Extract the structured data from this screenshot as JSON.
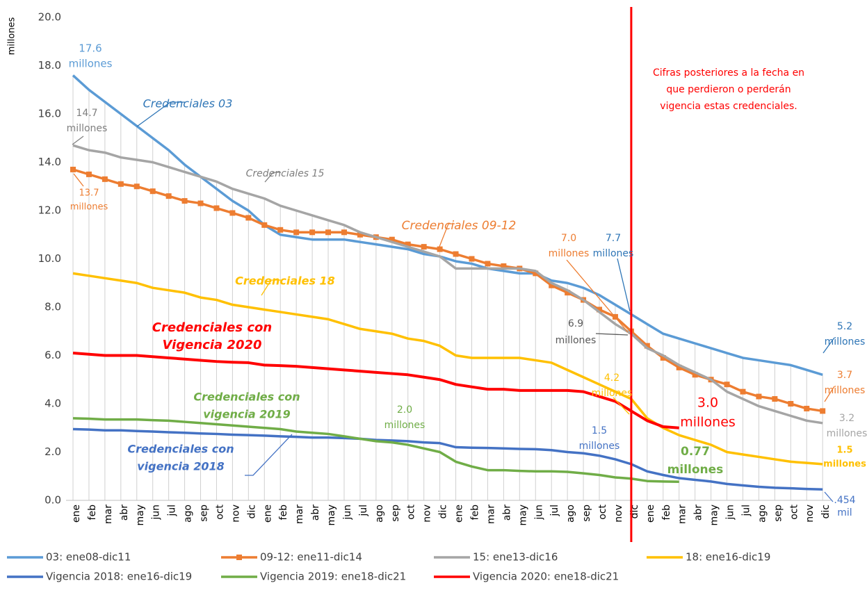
{
  "chart_data": {
    "type": "line",
    "y_label": "millones",
    "categories": [
      "ene",
      "feb",
      "mar",
      "abr",
      "may",
      "jun",
      "jul",
      "ago",
      "sep",
      "oct",
      "nov",
      "dic",
      "ene",
      "feb",
      "mar",
      "abr",
      "may",
      "jun",
      "jul",
      "ago",
      "sep",
      "oct",
      "nov",
      "dic",
      "ene",
      "feb",
      "mar",
      "abr",
      "may",
      "jun",
      "jul",
      "ago",
      "sep",
      "oct",
      "nov",
      "dic",
      "ene",
      "feb",
      "mar",
      "abr",
      "may",
      "jun",
      "jul",
      "ago",
      "sep",
      "oct",
      "nov",
      "dic"
    ],
    "ylim": [
      0,
      20
    ],
    "yticks": [
      {
        "value": 0,
        "label": "0.0"
      },
      {
        "value": 2,
        "label": "2.0"
      },
      {
        "value": 4,
        "label": "4.0"
      },
      {
        "value": 6,
        "label": "6.0"
      },
      {
        "value": 8,
        "label": "8.0"
      },
      {
        "value": 10,
        "label": "10.0"
      },
      {
        "value": 12,
        "label": "12.0"
      },
      {
        "value": 14,
        "label": "14.0"
      },
      {
        "value": 16,
        "label": "16.0"
      },
      {
        "value": 18,
        "label": "18.0"
      },
      {
        "value": 20,
        "label": "20.0"
      }
    ],
    "series": [
      {
        "name": "03: ene08-dic11",
        "color": "#5B9BD5",
        "values": [
          17.6,
          17.0,
          16.5,
          16.0,
          15.5,
          15.0,
          14.5,
          13.9,
          13.4,
          12.9,
          12.4,
          12.0,
          11.4,
          11.0,
          10.9,
          10.8,
          10.8,
          10.8,
          10.7,
          10.6,
          10.5,
          10.4,
          10.2,
          10.1,
          9.9,
          9.8,
          9.6,
          9.5,
          9.4,
          9.4,
          9.1,
          9.0,
          8.8,
          8.5,
          8.1,
          7.7,
          7.3,
          6.9,
          6.7,
          6.5,
          6.3,
          6.1,
          5.9,
          5.8,
          5.7,
          5.6,
          5.4,
          5.2
        ]
      },
      {
        "name": "09-12: ene11-dic14",
        "color": "#ED7D31",
        "marker": "square",
        "values": [
          13.7,
          13.5,
          13.3,
          13.1,
          13.0,
          12.8,
          12.6,
          12.4,
          12.3,
          12.1,
          11.9,
          11.7,
          11.4,
          11.2,
          11.1,
          11.1,
          11.1,
          11.1,
          11.0,
          10.9,
          10.8,
          10.6,
          10.5,
          10.4,
          10.2,
          10.0,
          9.8,
          9.7,
          9.6,
          9.4,
          8.9,
          8.6,
          8.3,
          7.9,
          7.6,
          7.0,
          6.4,
          5.9,
          5.5,
          5.2,
          5.0,
          4.8,
          4.5,
          4.3,
          4.2,
          4.0,
          3.8,
          3.7
        ]
      },
      {
        "name": "15: ene13-dic16",
        "color": "#A5A5A5",
        "values": [
          14.7,
          14.5,
          14.4,
          14.2,
          14.1,
          14.0,
          13.8,
          13.6,
          13.4,
          13.2,
          12.9,
          12.7,
          12.5,
          12.2,
          12.0,
          11.8,
          11.6,
          11.4,
          11.1,
          10.9,
          10.7,
          10.5,
          10.3,
          10.1,
          9.6,
          9.6,
          9.6,
          9.6,
          9.6,
          9.5,
          9.0,
          8.7,
          8.3,
          7.8,
          7.3,
          6.9,
          6.3,
          6.0,
          5.6,
          5.3,
          5.0,
          4.5,
          4.2,
          3.9,
          3.7,
          3.5,
          3.3,
          3.2
        ]
      },
      {
        "name": "18: ene16-dic19",
        "color": "#FFC000",
        "values": [
          9.4,
          9.3,
          9.2,
          9.1,
          9.0,
          8.8,
          8.7,
          8.6,
          8.4,
          8.3,
          8.1,
          8.0,
          7.9,
          7.8,
          7.7,
          7.6,
          7.5,
          7.3,
          7.1,
          7.0,
          6.9,
          6.7,
          6.6,
          6.4,
          6.0,
          5.9,
          5.9,
          5.9,
          5.9,
          5.8,
          5.7,
          5.4,
          5.1,
          4.8,
          4.5,
          4.2,
          3.4,
          3.0,
          2.7,
          2.5,
          2.3,
          2.0,
          1.9,
          1.8,
          1.7,
          1.6,
          1.55,
          1.5
        ]
      },
      {
        "name": "Vigencia 2018: ene16-dic19",
        "color": "#4472C4",
        "values": [
          2.95,
          2.93,
          2.9,
          2.9,
          2.87,
          2.85,
          2.82,
          2.8,
          2.77,
          2.75,
          2.72,
          2.7,
          2.68,
          2.65,
          2.63,
          2.6,
          2.6,
          2.58,
          2.55,
          2.5,
          2.48,
          2.45,
          2.4,
          2.37,
          2.2,
          2.18,
          2.17,
          2.15,
          2.13,
          2.12,
          2.08,
          2.0,
          1.95,
          1.85,
          1.7,
          1.5,
          1.2,
          1.05,
          0.92,
          0.85,
          0.78,
          0.68,
          0.62,
          0.56,
          0.52,
          0.5,
          0.47,
          0.454
        ]
      },
      {
        "name": "Vigencia 2019: ene18-dic21",
        "color": "#70AD47",
        "values": [
          3.4,
          3.38,
          3.35,
          3.35,
          3.35,
          3.32,
          3.3,
          3.25,
          3.2,
          3.15,
          3.1,
          3.05,
          3.0,
          2.95,
          2.85,
          2.8,
          2.75,
          2.65,
          2.55,
          2.45,
          2.4,
          2.3,
          2.15,
          2.0,
          1.6,
          1.4,
          1.25,
          1.25,
          1.22,
          1.2,
          1.2,
          1.18,
          1.12,
          1.05,
          0.95,
          0.9,
          0.8,
          0.78,
          0.77,
          null,
          null,
          null,
          null,
          null,
          null,
          null,
          null,
          null
        ]
      },
      {
        "name": "Vigencia 2020: ene18-dic21",
        "color": "#FF0000",
        "values": [
          6.1,
          6.05,
          6.0,
          6.0,
          6.0,
          5.95,
          5.9,
          5.85,
          5.8,
          5.75,
          5.72,
          5.7,
          5.6,
          5.58,
          5.55,
          5.5,
          5.45,
          5.4,
          5.35,
          5.3,
          5.25,
          5.2,
          5.1,
          5.0,
          4.8,
          4.7,
          4.6,
          4.6,
          4.55,
          4.55,
          4.55,
          4.55,
          4.5,
          4.3,
          4.1,
          3.7,
          3.3,
          3.05,
          3.0,
          null,
          null,
          null,
          null,
          null,
          null,
          null,
          null,
          null
        ]
      }
    ],
    "annotations": [
      {
        "lines": [
          "17.6",
          "millones"
        ],
        "color": "#5B9BD5"
      },
      {
        "lines": [
          "Credenciales 03"
        ],
        "color": "#2E75B6"
      },
      {
        "lines": [
          "14.7",
          "millones"
        ],
        "color": "#7F7F7F"
      },
      {
        "lines": [
          "13.7",
          "millones"
        ],
        "color": "#ED7D31"
      },
      {
        "lines": [
          "Credenciales 15"
        ],
        "color": "#7F7F7F"
      },
      {
        "lines": [
          "Credenciales 09-12"
        ],
        "color": "#ED7D31"
      },
      {
        "lines": [
          "Credenciales 18"
        ],
        "color": "#FFC000"
      },
      {
        "lines": [
          "Credenciales con",
          "Vigencia 2020"
        ],
        "color": "#FF0000"
      },
      {
        "lines": [
          "Credenciales con",
          "vigencia 2019"
        ],
        "color": "#70AD47"
      },
      {
        "lines": [
          "2.0",
          "millones"
        ],
        "color": "#70AD47"
      },
      {
        "lines": [
          "Credenciales con",
          "vigencia 2018"
        ],
        "color": "#4472C4"
      },
      {
        "lines": [
          "1.5",
          "millones"
        ],
        "color": "#4472C4"
      },
      {
        "lines": [
          "7.7",
          "millones"
        ],
        "color": "#2E75B6"
      },
      {
        "lines": [
          "7.0",
          "millones"
        ],
        "color": "#ED7D31"
      },
      {
        "lines": [
          "6.9",
          "millones"
        ],
        "color": "#595959"
      },
      {
        "lines": [
          "4.2",
          "millones"
        ],
        "color": "#FFC000"
      },
      {
        "lines": [
          "3.0",
          "millones"
        ],
        "color": "#FF0000"
      },
      {
        "lines": [
          "0.77",
          "millones"
        ],
        "color": "#70AD47"
      },
      {
        "lines": [
          "5.2",
          "millones"
        ],
        "color": "#2E75B6"
      },
      {
        "lines": [
          "3.7",
          "millones"
        ],
        "color": "#ED7D31"
      },
      {
        "lines": [
          "3.2",
          "millones"
        ],
        "color": "#A5A5A5"
      },
      {
        "lines": [
          "1.5",
          "millones"
        ],
        "color": "#FFC000"
      },
      {
        "lines": [
          ".454",
          "mil"
        ],
        "color": "#4472C4"
      },
      {
        "lines": [
          "Cifras posteriores a la fecha en",
          "que perdieron o perderán",
          "vigencia estas credenciales."
        ],
        "color": "#FF0000"
      }
    ]
  }
}
